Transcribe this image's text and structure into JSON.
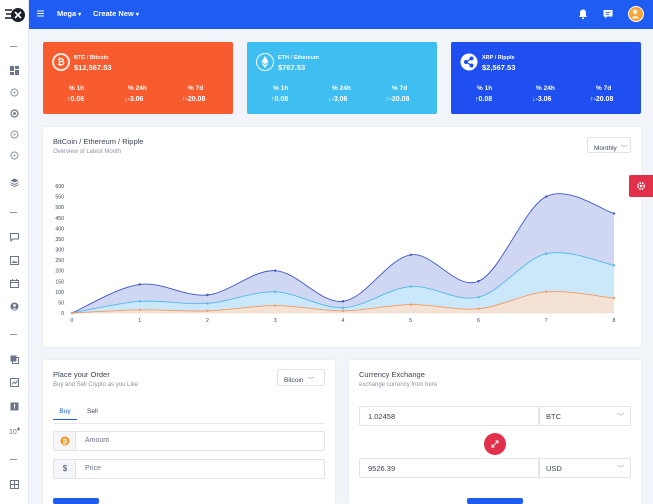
{
  "topbar": {
    "menu": [
      {
        "label": "Mega"
      },
      {
        "label": "Create New"
      }
    ],
    "icons": [
      "bell-icon",
      "chat-icon"
    ],
    "colors": {
      "bar": "#1f5cf2"
    }
  },
  "sidebar": {
    "icons": [
      "logo",
      "dashboard-icon",
      "circle-icon",
      "circle-icon",
      "circle-icon",
      "circle-icon",
      "layers-icon",
      "comment-icon",
      "image-icon",
      "calendar-icon",
      "user-icon",
      "copy-icon",
      "chart-icon",
      "alert-icon",
      "badge-icon",
      "table-icon"
    ]
  },
  "coins": [
    {
      "name": "BTC / Bitcoin",
      "price": "$12,567.53",
      "color": "#f75b2e",
      "icon": "bitcoin-icon",
      "stats": [
        {
          "label": "% 1h",
          "value": "↑0.06"
        },
        {
          "label": "% 24h",
          "value": "↓-3.06"
        },
        {
          "label": "% 7d",
          "value": "↑-20.08"
        }
      ]
    },
    {
      "name": "ETH / Ethereum",
      "price": "$767.53",
      "color": "#3fbef2",
      "icon": "ethereum-icon",
      "stats": [
        {
          "label": "% 1h",
          "value": "↑0.08"
        },
        {
          "label": "% 24h",
          "value": "↓-3.06"
        },
        {
          "label": "% 7d",
          "value": "↑-20.08"
        }
      ]
    },
    {
      "name": "XRP / Ripple",
      "price": "$2,567.53",
      "color": "#1f4ff0",
      "icon": "ripple-icon",
      "stats": [
        {
          "label": "% 1h",
          "value": "↑0.08"
        },
        {
          "label": "% 24h",
          "value": "↓-3.06"
        },
        {
          "label": "% 7d",
          "value": "↑-20.08"
        }
      ]
    }
  ],
  "chart_panel": {
    "title": "BitCoin / Ethereum / Ripple",
    "subtitle": "Overview of Latest Month",
    "period": "Monthly"
  },
  "chart_data": {
    "type": "area",
    "x": [
      0,
      1,
      2,
      3,
      4,
      5,
      6,
      7,
      8
    ],
    "xlim": [
      0,
      8
    ],
    "ylim": [
      0,
      600
    ],
    "yticks": [
      0,
      50,
      100,
      150,
      200,
      250,
      300,
      350,
      400,
      450,
      500,
      550,
      600
    ],
    "grid": false,
    "legend": "none",
    "series": [
      {
        "values": [
          0,
          135,
          85,
          200,
          55,
          275,
          150,
          550,
          470
        ],
        "color": "#c8d0f0",
        "stroke": "#3b57c8"
      },
      {
        "values": [
          0,
          55,
          45,
          100,
          25,
          125,
          75,
          280,
          225
        ],
        "color": "#c9ebfa",
        "stroke": "#55b9ea"
      },
      {
        "values": [
          0,
          15,
          10,
          35,
          10,
          40,
          20,
          100,
          70
        ],
        "color": "#fbe1cf",
        "stroke": "#f39a62"
      }
    ]
  },
  "order": {
    "title": "Place your Order",
    "subtitle": "Buy and Sell Crypto as you Like",
    "coin": "Bitcoin",
    "tabs": [
      {
        "label": "Buy"
      },
      {
        "label": "Sell"
      }
    ],
    "amount_placeholder": "Amount",
    "price_symbol": "$",
    "price_placeholder": "Price"
  },
  "exchange": {
    "title": "Currency Exchange",
    "subtitle": "exchange currency from here",
    "from_value": "1.02458",
    "from_currency": "BTC",
    "to_value": "9526.39",
    "to_currency": "USD"
  }
}
